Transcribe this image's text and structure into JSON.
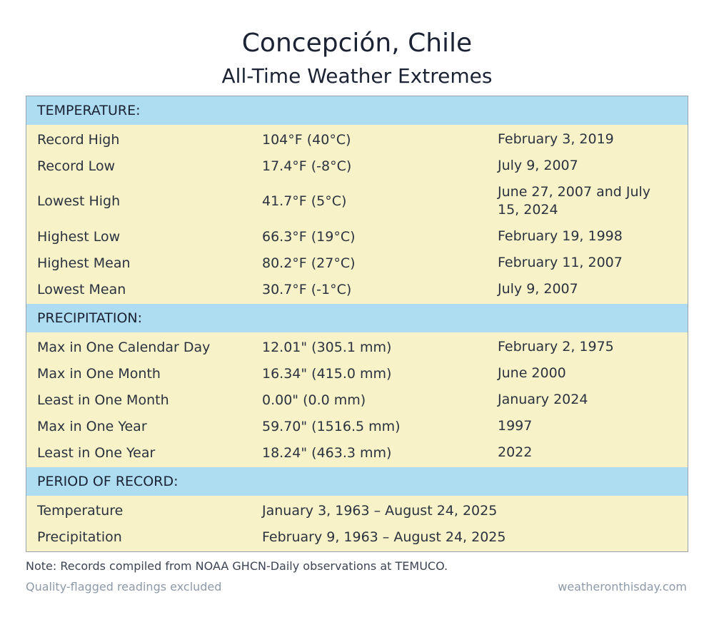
{
  "title": "Concepción, Chile",
  "subtitle": "All-Time Weather Extremes",
  "temperature": {
    "header": "TEMPERATURE:",
    "rows": [
      {
        "label": "Record High",
        "value": "104°F (40°C)",
        "date": "February 3, 2019"
      },
      {
        "label": "Record Low",
        "value": "17.4°F (-8°C)",
        "date": "July 9, 2007"
      },
      {
        "label": "Lowest High",
        "value": "41.7°F (5°C)",
        "date": "June 27, 2007 and July 15, 2024"
      },
      {
        "label": "Highest Low",
        "value": "66.3°F (19°C)",
        "date": "February 19, 1998"
      },
      {
        "label": "Highest Mean",
        "value": "80.2°F (27°C)",
        "date": "February 11, 2007"
      },
      {
        "label": "Lowest Mean",
        "value": "30.7°F (-1°C)",
        "date": "July 9, 2007"
      }
    ]
  },
  "precipitation": {
    "header": "PRECIPITATION:",
    "rows": [
      {
        "label": "Max in One Calendar Day",
        "value": "12.01\" (305.1 mm)",
        "date": "February 2, 1975"
      },
      {
        "label": "Max in One Month",
        "value": "16.34\" (415.0 mm)",
        "date": "June 2000"
      },
      {
        "label": "Least in One Month",
        "value": "0.00\" (0.0 mm)",
        "date": "January 2024"
      },
      {
        "label": "Max in One Year",
        "value": "59.70\" (1516.5 mm)",
        "date": "1997"
      },
      {
        "label": "Least in One Year",
        "value": "18.24\" (463.3 mm)",
        "date": "2022"
      }
    ]
  },
  "period": {
    "header": "PERIOD OF RECORD:",
    "rows": [
      {
        "label": "Temperature",
        "value": "January 3, 1963 – August 24, 2025"
      },
      {
        "label": "Precipitation",
        "value": "February 9, 1963 – August 24, 2025"
      }
    ]
  },
  "note": "Note: Records compiled from NOAA GHCN-Daily observations at TEMUCO.",
  "footer": {
    "left": "Quality-flagged readings excluded",
    "right": "weatheronthisday.com"
  },
  "colors": {
    "header_bg": "#aedcf0",
    "row_bg": "#f8f2c8",
    "text": "#1a2233",
    "muted": "#8e9aa8"
  }
}
